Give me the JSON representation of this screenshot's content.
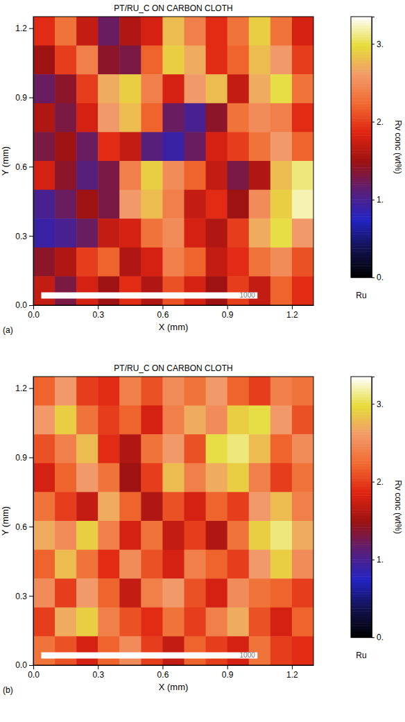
{
  "chart_data": [
    {
      "type": "heatmap",
      "title": "PT/RU_C ON CARBON CLOTH",
      "panel_label": "(a)",
      "xlabel": "X (mm)",
      "ylabel": "Y (mm)",
      "xlim": [
        0,
        1.3
      ],
      "ylim": [
        0,
        1.25
      ],
      "xticks": [
        {
          "value": 0,
          "label": "0.0"
        },
        0.3,
        0.6,
        0.9,
        1.2
      ],
      "yticks": [
        {
          "value": 0,
          "label": "0.0"
        },
        0.3,
        0.6,
        0.9,
        1.2
      ],
      "cells": [
        [
          1.9,
          2.3,
          1.7,
          1.2,
          1.6,
          1.8,
          2.8,
          2.4,
          1.9,
          2.3,
          2.9,
          2.3,
          1.8
        ],
        [
          1.5,
          2.0,
          2.4,
          1.4,
          1.3,
          2.2,
          2.9,
          2.7,
          1.9,
          2.2,
          2.8,
          2.6,
          2.0
        ],
        [
          1.2,
          1.4,
          2.0,
          2.7,
          2.9,
          2.4,
          1.8,
          2.6,
          2.8,
          1.7,
          2.7,
          3.0,
          2.3
        ],
        [
          1.6,
          1.3,
          1.8,
          2.6,
          2.8,
          2.2,
          1.2,
          1.0,
          1.4,
          2.3,
          2.5,
          2.4,
          1.9
        ],
        [
          1.3,
          1.5,
          1.2,
          1.9,
          1.7,
          1.1,
          0.9,
          1.2,
          1.8,
          2.0,
          2.3,
          2.6,
          2.2
        ],
        [
          1.8,
          1.4,
          1.1,
          1.3,
          2.4,
          2.9,
          2.5,
          2.2,
          1.7,
          1.3,
          1.6,
          2.8,
          3.1
        ],
        [
          1.0,
          1.2,
          1.5,
          1.3,
          2.6,
          2.8,
          2.4,
          1.7,
          1.9,
          1.5,
          2.5,
          2.9,
          3.2
        ],
        [
          0.9,
          1.0,
          1.2,
          1.7,
          1.8,
          2.3,
          2.5,
          1.8,
          1.6,
          2.0,
          2.7,
          3.0,
          2.6
        ],
        [
          1.4,
          1.6,
          2.0,
          2.2,
          1.6,
          1.8,
          2.4,
          2.2,
          1.7,
          1.9,
          2.3,
          2.5,
          2.1
        ],
        [
          1.7,
          1.3,
          1.8,
          1.5,
          1.9,
          1.6,
          2.1,
          1.8,
          1.5,
          2.0,
          1.7,
          2.2,
          1.9
        ]
      ],
      "colorbar_range": [
        0,
        3.35
      ],
      "colorbar_ticks": [
        {
          "value": 0,
          "label": "0."
        },
        {
          "value": 1,
          "label": "1."
        },
        {
          "value": 2,
          "label": "2."
        },
        {
          "value": 3,
          "label": "3."
        }
      ],
      "colorbar_title": "Rv conc (wt%)",
      "element": "Ru",
      "scale_bar": 1000
    },
    {
      "type": "heatmap",
      "title": "PT/RU_C ON CARBON CLOTH",
      "panel_label": "(b)",
      "xlabel": "X (mm)",
      "ylabel": "Y (mm)",
      "xlim": [
        0,
        1.3
      ],
      "ylim": [
        0,
        1.25
      ],
      "xticks": [
        {
          "value": 0,
          "label": "0.0"
        },
        0.3,
        0.6,
        0.9,
        1.2
      ],
      "yticks": [
        {
          "value": 0,
          "label": "0.0"
        },
        0.3,
        0.6,
        0.9,
        1.2
      ],
      "cells": [
        [
          2.2,
          2.6,
          2.0,
          1.9,
          2.4,
          2.1,
          2.5,
          2.3,
          2.6,
          2.2,
          2.0,
          2.4,
          2.3
        ],
        [
          2.6,
          2.9,
          2.3,
          2.0,
          2.2,
          1.8,
          2.4,
          2.7,
          2.5,
          2.9,
          3.0,
          2.6,
          2.1
        ],
        [
          2.1,
          2.4,
          2.8,
          1.9,
          1.6,
          2.3,
          2.6,
          2.1,
          3.0,
          3.1,
          2.8,
          2.2,
          2.5
        ],
        [
          1.8,
          2.2,
          2.6,
          2.3,
          1.5,
          2.0,
          2.8,
          2.4,
          2.7,
          2.9,
          2.4,
          2.0,
          2.3
        ],
        [
          2.3,
          2.0,
          1.7,
          2.7,
          2.2,
          1.6,
          2.1,
          1.8,
          2.2,
          2.0,
          2.6,
          2.8,
          2.4
        ],
        [
          2.7,
          2.5,
          2.9,
          2.4,
          1.8,
          2.3,
          1.7,
          2.0,
          1.6,
          2.3,
          2.9,
          3.1,
          2.7
        ],
        [
          2.2,
          2.8,
          2.3,
          1.9,
          2.5,
          2.1,
          1.8,
          2.4,
          2.2,
          2.0,
          2.6,
          2.9,
          2.5
        ],
        [
          2.5,
          2.0,
          2.6,
          2.2,
          1.7,
          2.4,
          2.6,
          2.1,
          1.8,
          2.5,
          2.3,
          2.2,
          2.0
        ],
        [
          2.0,
          2.7,
          2.9,
          2.4,
          2.1,
          1.9,
          2.3,
          2.0,
          2.4,
          2.7,
          2.1,
          1.8,
          2.2
        ],
        [
          2.3,
          2.1,
          1.8,
          2.2,
          2.5,
          2.0,
          1.7,
          2.2,
          2.0,
          1.8,
          2.3,
          2.0,
          1.9
        ]
      ],
      "colorbar_range": [
        0,
        3.35
      ],
      "colorbar_ticks": [
        {
          "value": 0,
          "label": "0."
        },
        {
          "value": 1,
          "label": "1."
        },
        {
          "value": 2,
          "label": "2."
        },
        {
          "value": 3,
          "label": "3."
        }
      ],
      "colorbar_title": "Rv conc (wt%)",
      "element": "Ru",
      "scale_bar": 1000
    }
  ]
}
